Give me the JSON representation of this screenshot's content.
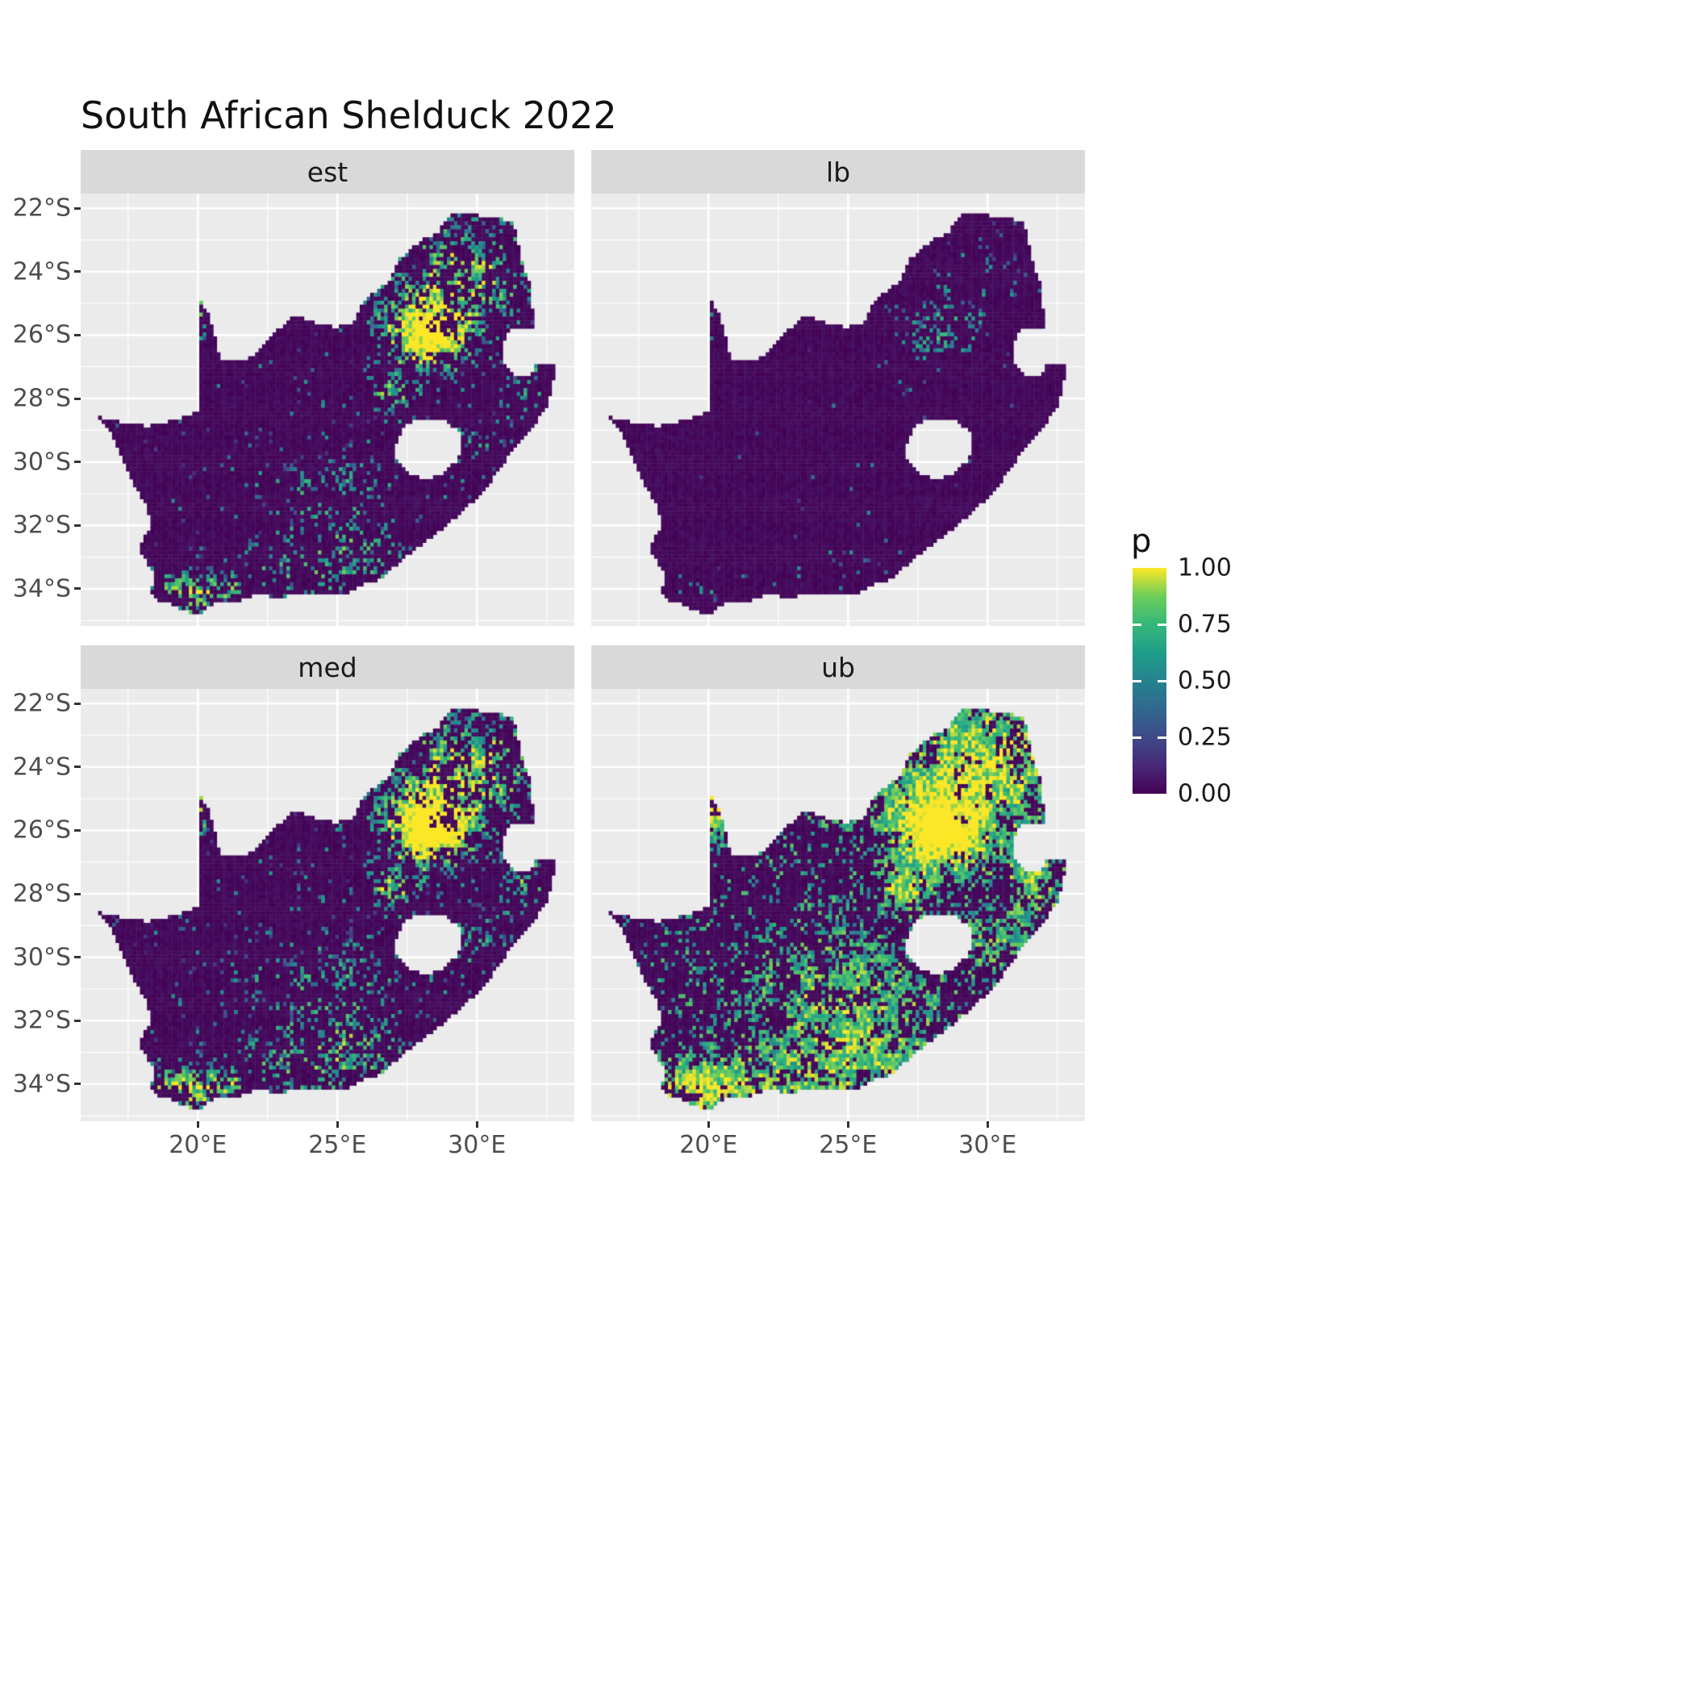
{
  "title": "South African Shelduck 2022",
  "facets": [
    {
      "label": "est"
    },
    {
      "label": "lb"
    },
    {
      "label": "med"
    },
    {
      "label": "ub"
    }
  ],
  "axes": {
    "x_ticks": [
      "20°E",
      "25°E",
      "30°E"
    ],
    "x_values": [
      20,
      25,
      30
    ],
    "y_ticks": [
      "22°S",
      "24°S",
      "26°S",
      "28°S",
      "30°S",
      "32°S",
      "34°S"
    ],
    "y_values": [
      -22,
      -24,
      -26,
      -28,
      -30,
      -32,
      -34
    ]
  },
  "legend": {
    "title": "p",
    "labels": [
      "1.00",
      "0.75",
      "0.50",
      "0.25",
      "0.00"
    ],
    "values": [
      1,
      0.75,
      0.5,
      0.25,
      0
    ]
  },
  "colors": {
    "panel_bg": "#ebebeb",
    "strip_bg": "#d9d9d9",
    "grid": "#ffffff",
    "axis_text": "#4d4d4d",
    "tick": "#333333",
    "title_text": "#111111",
    "viridis_stops": [
      "#440154",
      "#482878",
      "#3e4a89",
      "#31688e",
      "#26828e",
      "#1f9e89",
      "#35b779",
      "#6dcd59",
      "#fde725"
    ]
  },
  "chart_data": {
    "type": "heatmap",
    "title": "South African Shelduck 2022",
    "facets": [
      "est",
      "lb",
      "med",
      "ub"
    ],
    "variable": "p",
    "colour_scale": {
      "name": "viridis",
      "limits": [
        0,
        1
      ],
      "breaks": [
        0,
        0.25,
        0.5,
        0.75,
        1
      ]
    },
    "x_range": [
      15.8,
      33.49
    ],
    "y_range": [
      -35.17,
      -21.54
    ],
    "x_breaks": [
      20,
      25,
      30
    ],
    "y_breaks": [
      -22,
      -24,
      -26,
      -28,
      -30,
      -32,
      -34
    ],
    "x_minor_breaks": [
      17.5,
      22.5,
      27.5,
      32.5
    ],
    "y_minor_breaks": [
      -23,
      -25,
      -27,
      -29,
      -31,
      -33,
      -35
    ],
    "cell_size_deg": 0.125,
    "region": "South Africa (Lesotho excluded)",
    "description": "Four faceted raster maps of South Africa showing probability p (viridis 0-1) for South African Shelduck 2022: estimate (est), lower bound (lb), median (med) and upper bound (ub). Mostly near-zero (dark purple) with bright clusters around Gauteng (~28.2E, 26S), scattered speckles elsewhere; lb is sparsest, ub has widespread high values across the northeast and the southwestern Cape coast.",
    "outline": [
      [
        16.45,
        -28.58
      ],
      [
        17.35,
        -28.75
      ],
      [
        18.2,
        -28.87
      ],
      [
        19.1,
        -28.7
      ],
      [
        19.99,
        -28.43
      ],
      [
        19.99,
        -24.77
      ],
      [
        20.35,
        -25.3
      ],
      [
        20.65,
        -26.1
      ],
      [
        20.82,
        -26.85
      ],
      [
        21.6,
        -26.85
      ],
      [
        22.15,
        -26.5
      ],
      [
        22.85,
        -25.85
      ],
      [
        23.5,
        -25.35
      ],
      [
        24.25,
        -25.65
      ],
      [
        25.0,
        -25.75
      ],
      [
        25.6,
        -25.6
      ],
      [
        25.95,
        -24.9
      ],
      [
        26.45,
        -24.55
      ],
      [
        26.9,
        -24.25
      ],
      [
        27.2,
        -23.6
      ],
      [
        27.95,
        -23.05
      ],
      [
        28.6,
        -22.75
      ],
      [
        29.1,
        -22.2
      ],
      [
        29.7,
        -22.15
      ],
      [
        30.45,
        -22.3
      ],
      [
        31.3,
        -22.4
      ],
      [
        31.6,
        -23.6
      ],
      [
        31.88,
        -24.4
      ],
      [
        31.98,
        -25.15
      ],
      [
        32.05,
        -25.73
      ],
      [
        31.25,
        -25.78
      ],
      [
        30.87,
        -26.3
      ],
      [
        30.92,
        -26.9
      ],
      [
        31.3,
        -27.25
      ],
      [
        31.92,
        -27.3
      ],
      [
        32.12,
        -26.9
      ],
      [
        32.88,
        -26.86
      ],
      [
        32.55,
        -28.2
      ],
      [
        32.0,
        -28.9
      ],
      [
        31.15,
        -29.8
      ],
      [
        30.3,
        -30.85
      ],
      [
        29.45,
        -31.6
      ],
      [
        28.35,
        -32.4
      ],
      [
        27.35,
        -33.05
      ],
      [
        26.45,
        -33.75
      ],
      [
        25.65,
        -33.9
      ],
      [
        25.6,
        -34.08
      ],
      [
        24.85,
        -34.2
      ],
      [
        23.65,
        -34.1
      ],
      [
        22.9,
        -34.3
      ],
      [
        22.15,
        -34.15
      ],
      [
        21.3,
        -34.45
      ],
      [
        20.5,
        -34.47
      ],
      [
        20.0,
        -34.82
      ],
      [
        19.3,
        -34.6
      ],
      [
        18.85,
        -34.4
      ],
      [
        18.45,
        -34.33
      ],
      [
        18.33,
        -34.05
      ],
      [
        18.47,
        -33.65
      ],
      [
        18.1,
        -33.05
      ],
      [
        17.88,
        -32.7
      ],
      [
        18.3,
        -32.05
      ],
      [
        18.2,
        -31.45
      ],
      [
        17.6,
        -30.55
      ],
      [
        17.05,
        -29.35
      ],
      [
        16.75,
        -28.95
      ]
    ],
    "lesotho_hole": [
      [
        27.05,
        -29.6
      ],
      [
        27.3,
        -29.0
      ],
      [
        27.7,
        -28.68
      ],
      [
        28.35,
        -28.6
      ],
      [
        28.95,
        -28.72
      ],
      [
        29.35,
        -29.05
      ],
      [
        29.48,
        -29.45
      ],
      [
        29.28,
        -29.95
      ],
      [
        28.75,
        -30.35
      ],
      [
        28.1,
        -30.58
      ],
      [
        27.5,
        -30.3
      ],
      [
        27.1,
        -29.95
      ]
    ],
    "hotspots": [
      {
        "lon": 28.25,
        "lat": -25.95,
        "sx": 1.05,
        "sy": 0.85,
        "amp": 1.0
      },
      {
        "lon": 26.95,
        "lat": -27.9,
        "sx": 0.5,
        "sy": 0.45,
        "amp": 0.5
      },
      {
        "lon": 19.7,
        "lat": -34.2,
        "sx": 1.3,
        "sy": 0.5,
        "amp": 0.5
      },
      {
        "lon": 24.8,
        "lat": -31.3,
        "sx": 2.2,
        "sy": 1.3,
        "amp": 0.3
      },
      {
        "lon": 29.9,
        "lat": -23.9,
        "sx": 1.4,
        "sy": 1.0,
        "amp": 0.42
      },
      {
        "lon": 20.15,
        "lat": -25.4,
        "sx": 0.35,
        "sy": 0.55,
        "amp": 0.5
      },
      {
        "lon": 30.0,
        "lat": -29.4,
        "sx": 0.8,
        "sy": 0.6,
        "amp": 0.25
      },
      {
        "lon": 31.6,
        "lat": -27.6,
        "sx": 0.7,
        "sy": 0.8,
        "amp": 0.35
      },
      {
        "lon": 29.0,
        "lat": -24.3,
        "sx": 3.2,
        "sy": 1.8,
        "amp": 0.22
      },
      {
        "lon": 22.5,
        "lat": -33.8,
        "sx": 2.5,
        "sy": 0.7,
        "amp": 0.25
      },
      {
        "lon": 25.8,
        "lat": -33.0,
        "sx": 1.5,
        "sy": 0.8,
        "amp": 0.25
      }
    ],
    "facet_params": {
      "est": {
        "p0": 0.02,
        "p1": 0.8,
        "pe": 1.2,
        "v0": 0.22,
        "v1": 0.8,
        "vn": 0.55
      },
      "lb": {
        "p0": 0.004,
        "p1": 0.3,
        "pe": 2.2,
        "v0": 0.15,
        "v1": 0.32,
        "vn": 0.5
      },
      "med": {
        "p0": 0.03,
        "p1": 0.92,
        "pe": 1.05,
        "v0": 0.26,
        "v1": 0.85,
        "vn": 0.55
      },
      "ub": {
        "p0": 0.09,
        "p1": 1.7,
        "pe": 0.8,
        "v0": 0.55,
        "v1": 0.55,
        "vn": 0.45
      }
    }
  }
}
